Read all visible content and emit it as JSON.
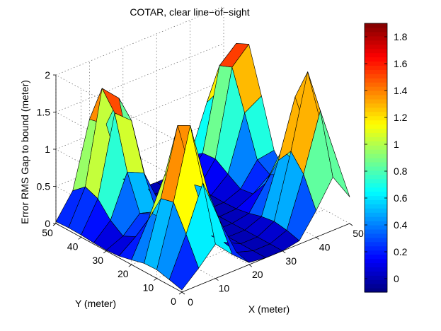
{
  "chart_data": {
    "type": "surface",
    "title": "COTAR, clear line−of−sight",
    "xlabel": "X (meter)",
    "ylabel": "Y (meter)",
    "zlabel": "Error RMS Gap to bound (meter)",
    "xlim": [
      0,
      50
    ],
    "ylim": [
      0,
      50
    ],
    "zlim": [
      0,
      2
    ],
    "x_ticks": [
      "0",
      "10",
      "20",
      "30",
      "40",
      "50"
    ],
    "y_ticks": [
      "0",
      "10",
      "20",
      "30",
      "40",
      "50"
    ],
    "z_ticks": [
      "0",
      "0.5",
      "1",
      "1.5",
      "2"
    ],
    "grid": true,
    "colormap": "jet",
    "color_limits": [
      -0.1,
      1.9
    ],
    "colorbar_ticks": [
      "0",
      "0.2",
      "0.4",
      "0.6",
      "0.8",
      "1",
      "1.2",
      "1.4",
      "1.6",
      "1.8"
    ],
    "grid_x": [
      0,
      5,
      10,
      15,
      20,
      25,
      30,
      35,
      40,
      45,
      50
    ],
    "grid_y": [
      0,
      5,
      10,
      15,
      20,
      25,
      30,
      35,
      40,
      45,
      50
    ],
    "surface_model": "z = 1.95*exp(-(((x-a)/6)^2 + ((y-b)/10)^2)) summed over peaks (a,b) = (45,10),(12,44),(48,42),(10,12), clamped to >= 0"
  }
}
